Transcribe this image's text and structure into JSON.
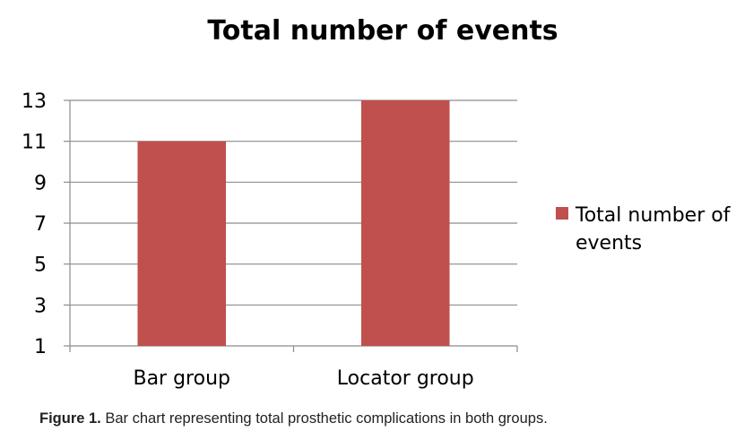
{
  "chart_data": {
    "type": "bar",
    "title": "Total number of events",
    "categories": [
      "Bar group",
      "Locator group"
    ],
    "series": [
      {
        "name": "Total number of events",
        "values": [
          11,
          13
        ],
        "color": "#c0504d"
      }
    ],
    "ylim": [
      1,
      13
    ],
    "yticks": [
      1,
      3,
      5,
      7,
      9,
      11,
      13
    ],
    "grid": true,
    "legend_position": "right",
    "legend_lines": [
      "Total number of",
      "events"
    ]
  },
  "caption": {
    "label": "Figure 1.",
    "text": "Bar chart representing total prosthetic complications in both groups."
  }
}
